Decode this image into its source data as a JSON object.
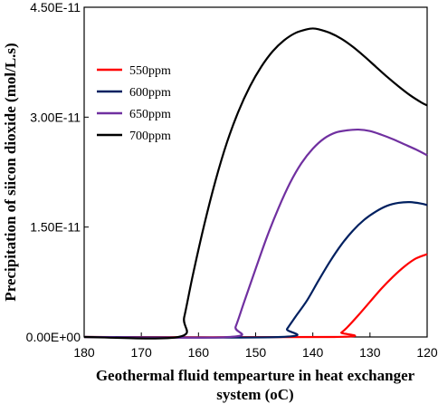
{
  "chart_data": {
    "type": "line",
    "title": "",
    "xlabel_line1": "Geothermal fluid tempearture in heat exchanger",
    "xlabel_line2": "system (oC)",
    "ylabel": "Precipitation of siicon dioxide (mol/L.s)",
    "xlim": [
      180,
      120
    ],
    "x_reversed": true,
    "ylim": [
      0,
      4.5e-11
    ],
    "x_ticks": [
      180,
      170,
      160,
      150,
      140,
      130,
      120
    ],
    "x_tick_labels": [
      "180",
      "170",
      "160",
      "150",
      "140",
      "130",
      "120"
    ],
    "y_ticks": [
      0,
      1.5e-11,
      3e-11,
      4.5e-11
    ],
    "y_tick_labels": [
      "0.00E+00",
      "1.50E-11",
      "3.00E-11",
      "4.50E-11"
    ],
    "grid": false,
    "legend_position": "top-left",
    "series": [
      {
        "name": "550ppm",
        "color": "#ff0000",
        "x": [
          180,
          136.2,
          135,
          134,
          132,
          130,
          128,
          126,
          124,
          122,
          120
        ],
        "y": [
          0,
          0,
          6e-13,
          1.3e-12,
          3e-12,
          4.8e-12,
          6.6e-12,
          8.2e-12,
          9.6e-12,
          1.07e-11,
          1.13e-11
        ]
      },
      {
        "name": "600ppm",
        "color": "#002060",
        "x": [
          180,
          145.5,
          144.5,
          143,
          141,
          139,
          137,
          135,
          133,
          131,
          129,
          127,
          125,
          123,
          121,
          120
        ],
        "y": [
          0,
          0,
          1.1e-12,
          2.8e-12,
          5e-12,
          7.7e-12,
          1.03e-11,
          1.26e-11,
          1.45e-11,
          1.6e-11,
          1.71e-11,
          1.79e-11,
          1.83e-11,
          1.84e-11,
          1.82e-11,
          1.8e-11
        ]
      },
      {
        "name": "650ppm",
        "color": "#7030a0",
        "x": [
          180,
          154.5,
          153.5,
          152,
          150,
          148,
          146,
          144,
          142,
          140,
          138,
          136,
          134,
          132,
          130,
          128,
          126,
          124,
          122,
          120
        ],
        "y": [
          0,
          0,
          1.4e-12,
          4.8e-12,
          9.3e-12,
          1.37e-11,
          1.76e-11,
          2.1e-11,
          2.37e-11,
          2.57e-11,
          2.71e-11,
          2.79e-11,
          2.82e-11,
          2.83e-11,
          2.81e-11,
          2.76e-11,
          2.7e-11,
          2.63e-11,
          2.56e-11,
          2.48e-11
        ]
      },
      {
        "name": "700ppm",
        "color": "#000000",
        "x": [
          180,
          163.5,
          162.5,
          161,
          159,
          157,
          155,
          153,
          151,
          149,
          147,
          145,
          143,
          141,
          140,
          139,
          137,
          135,
          133,
          131,
          129,
          127,
          125,
          123,
          121,
          120
        ],
        "y": [
          0,
          0,
          2.7e-12,
          8.4e-12,
          1.53e-11,
          2.14e-11,
          2.66e-11,
          3.08e-11,
          3.42e-11,
          3.69e-11,
          3.9e-11,
          4.05e-11,
          4.15e-11,
          4.2e-11,
          4.21e-11,
          4.2e-11,
          4.15e-11,
          4.07e-11,
          3.96e-11,
          3.83e-11,
          3.69e-11,
          3.55e-11,
          3.42e-11,
          3.3e-11,
          3.2e-11,
          3.16e-11
        ]
      }
    ]
  }
}
